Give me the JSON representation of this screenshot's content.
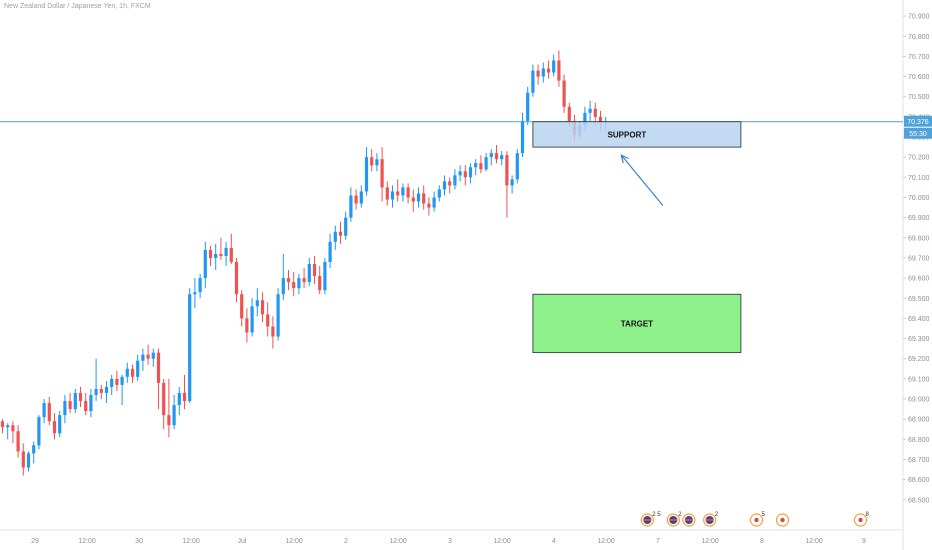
{
  "symbol_line": "New Zealand Dollar / Japanese Yen, 1h, FXCM",
  "colors": {
    "up": "#2196f3",
    "down": "#ef5350",
    "hline": "#4fa3d8",
    "support_fill": "#b8d3f0",
    "target_fill": "#8df08a",
    "arrow": "#3d7fc9",
    "axis_text": "#8a8f98",
    "event_ring": "#f0a040"
  },
  "price_tag": {
    "price": "70.376",
    "countdown": "55:30"
  },
  "chart_data": {
    "type": "candlestick",
    "title": "New Zealand Dollar / Japanese Yen, 1h, FXCM",
    "ylim": [
      68.35,
      70.98
    ],
    "y_ticks": [
      "70.900",
      "70.800",
      "70.700",
      "70.600",
      "70.500",
      "70.400",
      "70.300",
      "70.200",
      "70.100",
      "70.000",
      "69.900",
      "69.800",
      "69.700",
      "69.600",
      "69.500",
      "69.400",
      "69.300",
      "69.200",
      "69.100",
      "69.000",
      "68.900",
      "68.800",
      "68.700",
      "68.600",
      "68.500"
    ],
    "x_ticks": [
      "29",
      "12:00",
      "30",
      "12:00",
      "Jul",
      "12:00",
      "2",
      "12:00",
      "3",
      "12:00",
      "4",
      "12:00",
      "7",
      "12:00",
      "8",
      "12:00",
      "9"
    ],
    "last_price": 70.376,
    "candles": [
      {
        "o": 68.89,
        "h": 68.9,
        "l": 68.83,
        "c": 68.86
      },
      {
        "o": 68.86,
        "h": 68.88,
        "l": 68.8,
        "c": 68.87
      },
      {
        "o": 68.87,
        "h": 68.89,
        "l": 68.78,
        "c": 68.84
      },
      {
        "o": 68.84,
        "h": 68.87,
        "l": 68.71,
        "c": 68.74
      },
      {
        "o": 68.74,
        "h": 68.78,
        "l": 68.62,
        "c": 68.66
      },
      {
        "o": 68.66,
        "h": 68.74,
        "l": 68.64,
        "c": 68.73
      },
      {
        "o": 68.73,
        "h": 68.79,
        "l": 68.68,
        "c": 68.77
      },
      {
        "o": 68.77,
        "h": 68.92,
        "l": 68.75,
        "c": 68.91
      },
      {
        "o": 68.91,
        "h": 69.0,
        "l": 68.88,
        "c": 68.98
      },
      {
        "o": 68.98,
        "h": 69.01,
        "l": 68.87,
        "c": 68.89
      },
      {
        "o": 68.89,
        "h": 68.93,
        "l": 68.8,
        "c": 68.83
      },
      {
        "o": 68.83,
        "h": 68.94,
        "l": 68.81,
        "c": 68.92
      },
      {
        "o": 68.92,
        "h": 69.02,
        "l": 68.88,
        "c": 68.99
      },
      {
        "o": 68.99,
        "h": 69.03,
        "l": 68.93,
        "c": 68.95
      },
      {
        "o": 68.95,
        "h": 69.05,
        "l": 68.93,
        "c": 69.03
      },
      {
        "o": 69.03,
        "h": 69.06,
        "l": 68.96,
        "c": 68.99
      },
      {
        "o": 68.99,
        "h": 69.03,
        "l": 68.92,
        "c": 68.94
      },
      {
        "o": 68.94,
        "h": 69.05,
        "l": 68.91,
        "c": 69.02
      },
      {
        "o": 69.02,
        "h": 69.2,
        "l": 68.99,
        "c": 69.05
      },
      {
        "o": 69.05,
        "h": 69.07,
        "l": 69.0,
        "c": 69.03
      },
      {
        "o": 69.03,
        "h": 69.09,
        "l": 68.98,
        "c": 69.06
      },
      {
        "o": 69.06,
        "h": 69.12,
        "l": 69.02,
        "c": 69.1
      },
      {
        "o": 69.1,
        "h": 69.14,
        "l": 69.04,
        "c": 69.07
      },
      {
        "o": 69.07,
        "h": 69.12,
        "l": 68.97,
        "c": 69.11
      },
      {
        "o": 69.11,
        "h": 69.18,
        "l": 69.08,
        "c": 69.15
      },
      {
        "o": 69.15,
        "h": 69.17,
        "l": 69.08,
        "c": 69.11
      },
      {
        "o": 69.11,
        "h": 69.22,
        "l": 69.09,
        "c": 69.19
      },
      {
        "o": 69.19,
        "h": 69.25,
        "l": 69.14,
        "c": 69.22
      },
      {
        "o": 69.22,
        "h": 69.27,
        "l": 69.17,
        "c": 69.2
      },
      {
        "o": 69.2,
        "h": 69.25,
        "l": 69.16,
        "c": 69.23
      },
      {
        "o": 69.23,
        "h": 69.25,
        "l": 68.95,
        "c": 69.08
      },
      {
        "o": 69.08,
        "h": 69.1,
        "l": 68.85,
        "c": 68.92
      },
      {
        "o": 68.92,
        "h": 69.1,
        "l": 68.81,
        "c": 68.87
      },
      {
        "o": 68.87,
        "h": 69.02,
        "l": 68.85,
        "c": 68.97
      },
      {
        "o": 68.97,
        "h": 69.06,
        "l": 68.92,
        "c": 69.03
      },
      {
        "o": 69.03,
        "h": 69.12,
        "l": 68.95,
        "c": 68.99
      },
      {
        "o": 68.99,
        "h": 69.55,
        "l": 68.98,
        "c": 69.52
      },
      {
        "o": 69.52,
        "h": 69.6,
        "l": 69.45,
        "c": 69.53
      },
      {
        "o": 69.53,
        "h": 69.62,
        "l": 69.5,
        "c": 69.6
      },
      {
        "o": 69.6,
        "h": 69.78,
        "l": 69.55,
        "c": 69.74
      },
      {
        "o": 69.74,
        "h": 69.76,
        "l": 69.66,
        "c": 69.7
      },
      {
        "o": 69.7,
        "h": 69.77,
        "l": 69.64,
        "c": 69.72
      },
      {
        "o": 69.72,
        "h": 69.8,
        "l": 69.69,
        "c": 69.71
      },
      {
        "o": 69.71,
        "h": 69.78,
        "l": 69.66,
        "c": 69.75
      },
      {
        "o": 69.75,
        "h": 69.82,
        "l": 69.67,
        "c": 69.68
      },
      {
        "o": 69.68,
        "h": 69.7,
        "l": 69.48,
        "c": 69.52
      },
      {
        "o": 69.52,
        "h": 69.54,
        "l": 69.36,
        "c": 69.4
      },
      {
        "o": 69.4,
        "h": 69.45,
        "l": 69.28,
        "c": 69.33
      },
      {
        "o": 69.33,
        "h": 69.5,
        "l": 69.31,
        "c": 69.46
      },
      {
        "o": 69.46,
        "h": 69.55,
        "l": 69.41,
        "c": 69.49
      },
      {
        "o": 69.49,
        "h": 69.53,
        "l": 69.38,
        "c": 69.42
      },
      {
        "o": 69.42,
        "h": 69.48,
        "l": 69.31,
        "c": 69.36
      },
      {
        "o": 69.36,
        "h": 69.41,
        "l": 69.25,
        "c": 69.31
      },
      {
        "o": 69.31,
        "h": 69.55,
        "l": 69.29,
        "c": 69.52
      },
      {
        "o": 69.52,
        "h": 69.72,
        "l": 69.49,
        "c": 69.6
      },
      {
        "o": 69.6,
        "h": 69.64,
        "l": 69.54,
        "c": 69.58
      },
      {
        "o": 69.58,
        "h": 69.63,
        "l": 69.51,
        "c": 69.55
      },
      {
        "o": 69.55,
        "h": 69.62,
        "l": 69.52,
        "c": 69.6
      },
      {
        "o": 69.6,
        "h": 69.65,
        "l": 69.55,
        "c": 69.58
      },
      {
        "o": 69.58,
        "h": 69.7,
        "l": 69.56,
        "c": 69.67
      },
      {
        "o": 69.67,
        "h": 69.71,
        "l": 69.57,
        "c": 69.61
      },
      {
        "o": 69.61,
        "h": 69.66,
        "l": 69.52,
        "c": 69.54
      },
      {
        "o": 69.54,
        "h": 69.7,
        "l": 69.52,
        "c": 69.68
      },
      {
        "o": 69.68,
        "h": 69.82,
        "l": 69.65,
        "c": 69.78
      },
      {
        "o": 69.78,
        "h": 69.86,
        "l": 69.74,
        "c": 69.83
      },
      {
        "o": 69.83,
        "h": 69.88,
        "l": 69.77,
        "c": 69.81
      },
      {
        "o": 69.81,
        "h": 69.93,
        "l": 69.79,
        "c": 69.9
      },
      {
        "o": 69.9,
        "h": 70.05,
        "l": 69.88,
        "c": 70.01
      },
      {
        "o": 70.01,
        "h": 70.04,
        "l": 69.94,
        "c": 69.97
      },
      {
        "o": 69.97,
        "h": 70.06,
        "l": 69.95,
        "c": 70.03
      },
      {
        "o": 70.03,
        "h": 70.25,
        "l": 70.01,
        "c": 70.2
      },
      {
        "o": 70.2,
        "h": 70.24,
        "l": 70.13,
        "c": 70.16
      },
      {
        "o": 70.16,
        "h": 70.22,
        "l": 70.13,
        "c": 70.19
      },
      {
        "o": 70.19,
        "h": 70.25,
        "l": 69.98,
        "c": 70.05
      },
      {
        "o": 70.05,
        "h": 70.08,
        "l": 69.96,
        "c": 69.99
      },
      {
        "o": 69.99,
        "h": 70.06,
        "l": 69.95,
        "c": 70.03
      },
      {
        "o": 70.03,
        "h": 70.09,
        "l": 69.98,
        "c": 70.01
      },
      {
        "o": 70.01,
        "h": 70.07,
        "l": 69.98,
        "c": 70.05
      },
      {
        "o": 70.05,
        "h": 70.07,
        "l": 69.97,
        "c": 70.0
      },
      {
        "o": 70.0,
        "h": 70.04,
        "l": 69.93,
        "c": 69.98
      },
      {
        "o": 69.98,
        "h": 70.05,
        "l": 69.95,
        "c": 70.02
      },
      {
        "o": 70.02,
        "h": 70.06,
        "l": 69.94,
        "c": 69.97
      },
      {
        "o": 69.97,
        "h": 70.0,
        "l": 69.91,
        "c": 69.95
      },
      {
        "o": 69.95,
        "h": 70.03,
        "l": 69.93,
        "c": 70.0
      },
      {
        "o": 70.0,
        "h": 70.06,
        "l": 69.98,
        "c": 70.04
      },
      {
        "o": 70.04,
        "h": 70.11,
        "l": 70.01,
        "c": 70.08
      },
      {
        "o": 70.08,
        "h": 70.1,
        "l": 70.02,
        "c": 70.06
      },
      {
        "o": 70.06,
        "h": 70.14,
        "l": 70.04,
        "c": 70.11
      },
      {
        "o": 70.11,
        "h": 70.16,
        "l": 70.08,
        "c": 70.13
      },
      {
        "o": 70.13,
        "h": 70.16,
        "l": 70.06,
        "c": 70.1
      },
      {
        "o": 70.1,
        "h": 70.17,
        "l": 70.07,
        "c": 70.15
      },
      {
        "o": 70.15,
        "h": 70.19,
        "l": 70.11,
        "c": 70.17
      },
      {
        "o": 70.17,
        "h": 70.21,
        "l": 70.12,
        "c": 70.14
      },
      {
        "o": 70.14,
        "h": 70.22,
        "l": 70.13,
        "c": 70.2
      },
      {
        "o": 70.2,
        "h": 70.24,
        "l": 70.16,
        "c": 70.22
      },
      {
        "o": 70.22,
        "h": 70.26,
        "l": 70.17,
        "c": 70.19
      },
      {
        "o": 70.19,
        "h": 70.23,
        "l": 70.16,
        "c": 70.21
      },
      {
        "o": 70.21,
        "h": 70.23,
        "l": 69.9,
        "c": 70.06
      },
      {
        "o": 70.06,
        "h": 70.11,
        "l": 70.02,
        "c": 70.09
      },
      {
        "o": 70.09,
        "h": 70.24,
        "l": 70.07,
        "c": 70.22
      },
      {
        "o": 70.22,
        "h": 70.42,
        "l": 70.2,
        "c": 70.38
      },
      {
        "o": 70.38,
        "h": 70.55,
        "l": 70.36,
        "c": 70.52
      },
      {
        "o": 70.52,
        "h": 70.66,
        "l": 70.5,
        "c": 70.63
      },
      {
        "o": 70.63,
        "h": 70.66,
        "l": 70.56,
        "c": 70.6
      },
      {
        "o": 70.6,
        "h": 70.67,
        "l": 70.57,
        "c": 70.64
      },
      {
        "o": 70.64,
        "h": 70.68,
        "l": 70.59,
        "c": 70.62
      },
      {
        "o": 70.62,
        "h": 70.71,
        "l": 70.6,
        "c": 70.68
      },
      {
        "o": 70.68,
        "h": 70.73,
        "l": 70.55,
        "c": 70.58
      },
      {
        "o": 70.58,
        "h": 70.61,
        "l": 70.42,
        "c": 70.45
      },
      {
        "o": 70.45,
        "h": 70.47,
        "l": 70.35,
        "c": 70.38
      },
      {
        "o": 70.38,
        "h": 70.41,
        "l": 70.28,
        "c": 70.31
      },
      {
        "o": 70.31,
        "h": 70.38,
        "l": 70.29,
        "c": 70.36
      },
      {
        "o": 70.36,
        "h": 70.45,
        "l": 70.33,
        "c": 70.42
      },
      {
        "o": 70.42,
        "h": 70.48,
        "l": 70.38,
        "c": 70.44
      },
      {
        "o": 70.44,
        "h": 70.47,
        "l": 70.36,
        "c": 70.4
      },
      {
        "o": 70.4,
        "h": 70.43,
        "l": 70.33,
        "c": 70.37
      },
      {
        "o": 70.37,
        "h": 70.4,
        "l": 70.33,
        "c": 70.376
      }
    ],
    "annotations": {
      "support": {
        "label": "SUPPORT",
        "top": 70.376,
        "bottom": 70.25,
        "from_index": 102,
        "to_index": 142
      },
      "target": {
        "label": "TARGET",
        "top": 69.52,
        "bottom": 69.23,
        "from_index": 102,
        "to_index": 142
      },
      "arrow": {
        "from": {
          "index": 127,
          "price": 69.96
        },
        "to": {
          "index": 119,
          "price": 70.21
        }
      }
    },
    "events": [
      {
        "index": 124,
        "label": "2 5",
        "kind": "flag"
      },
      {
        "index": 129,
        "label": "2",
        "kind": "flag"
      },
      {
        "index": 132,
        "label": "",
        "kind": "flag"
      },
      {
        "index": 136,
        "label": "2",
        "kind": "flag"
      },
      {
        "index": 145,
        "label": "5",
        "kind": "dot"
      },
      {
        "index": 150,
        "label": "",
        "kind": "dot"
      },
      {
        "index": 165,
        "label": "8",
        "kind": "dot"
      }
    ]
  }
}
